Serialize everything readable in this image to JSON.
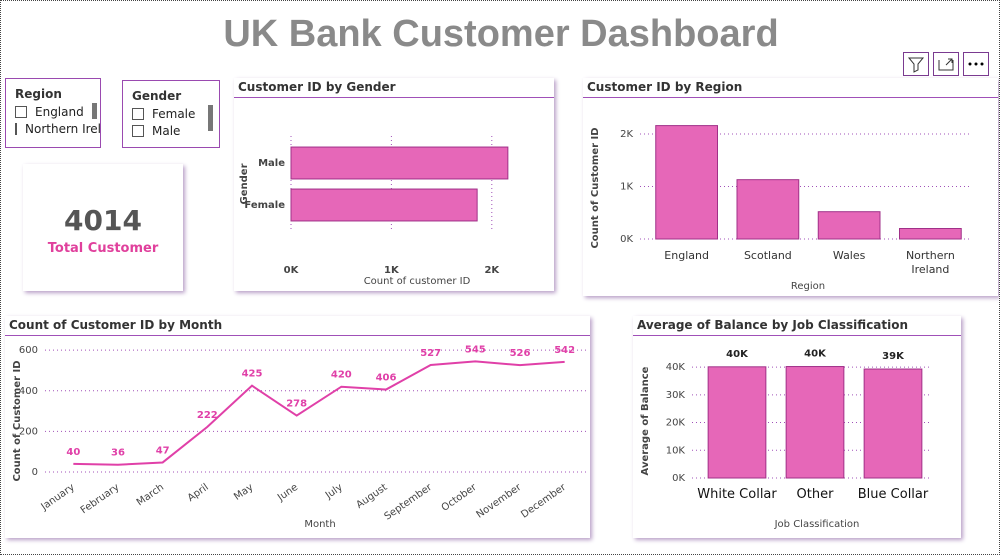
{
  "title": "UK Bank Customer Dashboard",
  "slicers": [
    {
      "title": "Region",
      "items": [
        "England",
        "Northern Ireland"
      ]
    },
    {
      "title": "Gender",
      "items": [
        "Female",
        "Male"
      ]
    }
  ],
  "kpi": {
    "value": "4014",
    "label": "Total Customer"
  },
  "chart_data": [
    {
      "type": "bar",
      "orientation": "horizontal",
      "title": "Customer ID by Gender",
      "x_label": "Count of customer ID",
      "y_label": "Gender",
      "categories": [
        "Male",
        "Female"
      ],
      "values": [
        2160,
        1854
      ],
      "color": "#e667b8",
      "xlim": [
        0,
        2500
      ],
      "xticks": [
        {
          "value": 0,
          "label": "0K"
        },
        {
          "value": 1000,
          "label": "1K"
        },
        {
          "value": 2000,
          "label": "2K"
        }
      ],
      "grid": true
    },
    {
      "type": "bar",
      "title": "Customer ID by Region",
      "x_label": "Region",
      "y_label": "Count of Customer ID",
      "categories": [
        "England",
        "Scotland",
        "Wales",
        "Northern Ireland"
      ],
      "values": [
        2160,
        1130,
        520,
        200
      ],
      "color": "#e667b8",
      "ylim": [
        0,
        2400
      ],
      "yticks": [
        {
          "value": 0,
          "label": "0K"
        },
        {
          "value": 1000,
          "label": "1K"
        },
        {
          "value": 2000,
          "label": "2K"
        }
      ],
      "grid": true
    },
    {
      "type": "line",
      "title": "Count of Customer ID by Month",
      "x_label": "Month",
      "y_label": "Count of Customer ID",
      "categories": [
        "January",
        "February",
        "March",
        "April",
        "May",
        "June",
        "July",
        "August",
        "September",
        "October",
        "November",
        "December"
      ],
      "values": [
        40,
        36,
        47,
        222,
        425,
        278,
        420,
        406,
        527,
        545,
        526,
        542
      ],
      "color": "#e040a8",
      "ylim": [
        0,
        650
      ],
      "yticks": [
        0,
        200,
        400,
        600
      ],
      "grid": true
    },
    {
      "type": "bar",
      "title": "Average of Balance by Job Classification",
      "x_label": "Job Classification",
      "y_label": "Average of Balance",
      "categories": [
        "White Collar",
        "Other",
        "Blue Collar"
      ],
      "values": [
        40100,
        40200,
        39300
      ],
      "value_labels": [
        "40K",
        "40K",
        "39K"
      ],
      "color": "#e667b8",
      "ylim": [
        0,
        44000
      ],
      "yticks": [
        {
          "value": 0,
          "label": "0K"
        },
        {
          "value": 10000,
          "label": "10K"
        },
        {
          "value": 20000,
          "label": "20K"
        },
        {
          "value": 30000,
          "label": "30K"
        },
        {
          "value": 40000,
          "label": "40K"
        }
      ],
      "grid": true
    }
  ]
}
